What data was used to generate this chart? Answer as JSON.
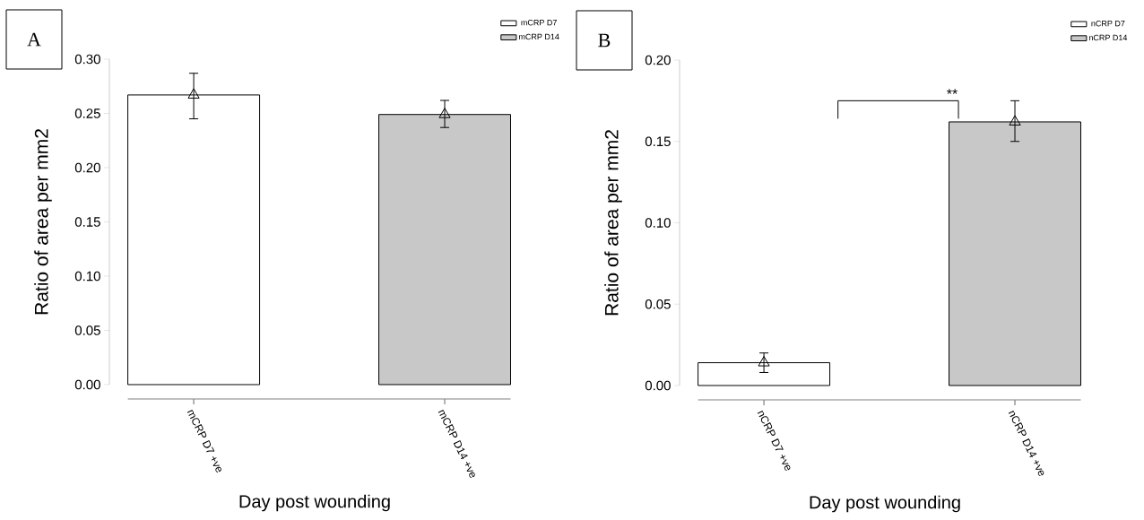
{
  "chart_data": [
    {
      "type": "bar",
      "xlabel": "Day post wounding",
      "ylabel": "Ratio of area per mm2",
      "categories": [
        "mCRP D7 +ve",
        "mCRP D14 +ve"
      ],
      "series": [
        {
          "name": "mCRP D7",
          "color": "#ffffff",
          "values": [
            0.267,
            null
          ],
          "errors": [
            [
              0.245,
              0.287
            ],
            null
          ]
        },
        {
          "name": "mCRP D14",
          "color": "#c8c8c8",
          "values": [
            null,
            0.249
          ],
          "errors": [
            null,
            [
              0.237,
              0.262
            ]
          ]
        },
        {
          "type": "scatter",
          "x": [
            "mCRP D7 +ve",
            "mCRP D14 +ve"
          ],
          "values": [
            0.267,
            0.249
          ],
          "color": "#000000",
          "marker": "triangle"
        }
      ],
      "ylim": [
        0,
        0.3
      ],
      "yticks": [
        {
          "value": 0,
          "label": "0.00"
        },
        {
          "value": 0.05,
          "label": "0.05"
        },
        {
          "value": 0.1,
          "label": "0.10"
        },
        {
          "value": 0.15,
          "label": "0.15"
        },
        {
          "value": 0.2,
          "label": "0.20"
        },
        {
          "value": 0.25,
          "label": "0.25"
        },
        {
          "value": 0.3,
          "label": "0.30"
        }
      ],
      "legend": "top right",
      "annotations": [
        "A"
      ]
    },
    {
      "type": "bar",
      "xlabel": "Day post wounding",
      "ylabel": "Ratio of area per mm2",
      "categories": [
        "nCRP D7 +ve",
        "nCRP D14 +ve"
      ],
      "series": [
        {
          "name": "nCRP D7",
          "color": "#ffffff",
          "values": [
            0.014,
            null
          ],
          "errors": [
            [
              0.008,
              0.02
            ],
            null
          ]
        },
        {
          "name": "nCRP D14",
          "color": "#c8c8c8",
          "values": [
            null,
            0.162
          ],
          "errors": [
            null,
            [
              0.15,
              0.175
            ]
          ]
        },
        {
          "type": "scatter",
          "x": [
            "nCRP D7 +ve",
            "nCRP D14 +ve"
          ],
          "values": [
            0.014,
            0.162
          ],
          "color": "#000000",
          "marker": "triangle"
        }
      ],
      "ylim": [
        0,
        0.2
      ],
      "yticks": [
        {
          "value": 0,
          "label": "0.00"
        },
        {
          "value": 0.05,
          "label": "0.05"
        },
        {
          "value": 0.1,
          "label": "0.10"
        },
        {
          "value": 0.15,
          "label": "0.15"
        },
        {
          "value": 0.2,
          "label": "0.20"
        }
      ],
      "legend": "top right",
      "annotations": [
        "B",
        "**"
      ]
    }
  ]
}
